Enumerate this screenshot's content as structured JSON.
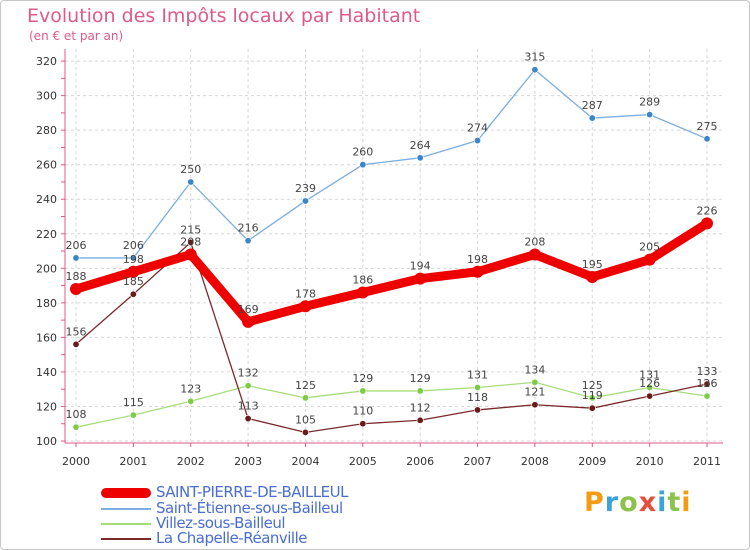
{
  "header": {
    "title": "Evolution des Impôts locaux par Habitant",
    "subtitle": "(en € et par an)"
  },
  "logo": {
    "text": "Proxiti",
    "colors": [
      "#f39c12",
      "#3aa3d8",
      "#8bc34a",
      "#e74c3c",
      "#3aa3d8",
      "#8bc34a",
      "#f39c12"
    ]
  },
  "chart_data": {
    "type": "line",
    "x": [
      "2000",
      "2001",
      "2002",
      "2003",
      "2004",
      "2005",
      "2006",
      "2007",
      "2008",
      "2009",
      "2010",
      "2011"
    ],
    "ylim": [
      100,
      320
    ],
    "yticks": [
      100,
      120,
      140,
      160,
      180,
      200,
      220,
      240,
      260,
      280,
      300,
      320
    ],
    "grid": true,
    "legend": "bottom-left",
    "series": [
      {
        "name": "SAINT-PIERRE-DE-BAILLEUL",
        "color": "#ee0000",
        "marker": "#ee0000",
        "emphasis": true,
        "values": [
          188,
          198,
          208,
          169,
          178,
          186,
          194,
          198,
          208,
          195,
          205,
          226
        ]
      },
      {
        "name": "Saint-Étienne-sous-Bailleul",
        "color": "#7aaee0",
        "marker": "#3a86c8",
        "values": [
          206,
          206,
          250,
          216,
          239,
          260,
          264,
          274,
          315,
          287,
          289,
          275
        ]
      },
      {
        "name": "Villez-sous-Bailleul",
        "color": "#a6dd7c",
        "marker": "#7ccc46",
        "values": [
          108,
          115,
          123,
          132,
          125,
          129,
          129,
          131,
          134,
          125,
          131,
          126
        ]
      },
      {
        "name": "La Chapelle-Réanville",
        "color": "#7a2a2a",
        "marker": "#6a1a1a",
        "values": [
          156,
          185,
          215,
          113,
          105,
          110,
          112,
          118,
          121,
          119,
          126,
          133
        ]
      }
    ]
  }
}
